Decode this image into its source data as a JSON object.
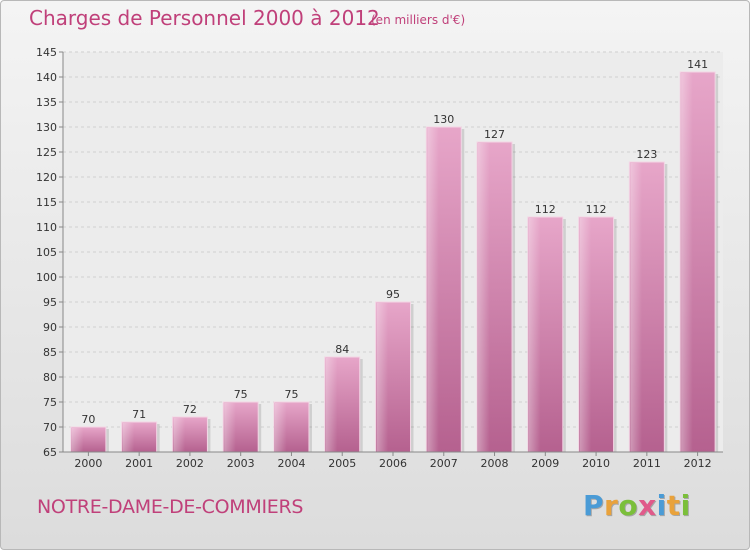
{
  "chart_data": {
    "type": "bar",
    "title": "Charges de Personnel 2000 à 2012",
    "subtitle": "(en milliers d'€)",
    "categories": [
      "2000",
      "2001",
      "2002",
      "2003",
      "2004",
      "2005",
      "2006",
      "2007",
      "2008",
      "2009",
      "2010",
      "2011",
      "2012"
    ],
    "values": [
      70,
      71,
      72,
      75,
      75,
      84,
      95,
      130,
      127,
      112,
      112,
      123,
      141
    ],
    "ylim": [
      65,
      145
    ],
    "yticks": [
      65,
      70,
      75,
      80,
      85,
      90,
      95,
      100,
      105,
      110,
      115,
      120,
      125,
      130,
      135,
      140,
      145
    ],
    "grid": true,
    "bar_color": "#d67aa8"
  },
  "commune": "NOTRE-DAME-DE-COMMIERS",
  "logo": {
    "letters": [
      "P",
      "r",
      "o",
      "x",
      "i",
      "t",
      "i"
    ],
    "colors": [
      "#4a9bd6",
      "#e9a23b",
      "#7bbf3a",
      "#e05a8a",
      "#4a9bd6",
      "#e9a23b",
      "#7bbf3a"
    ]
  }
}
